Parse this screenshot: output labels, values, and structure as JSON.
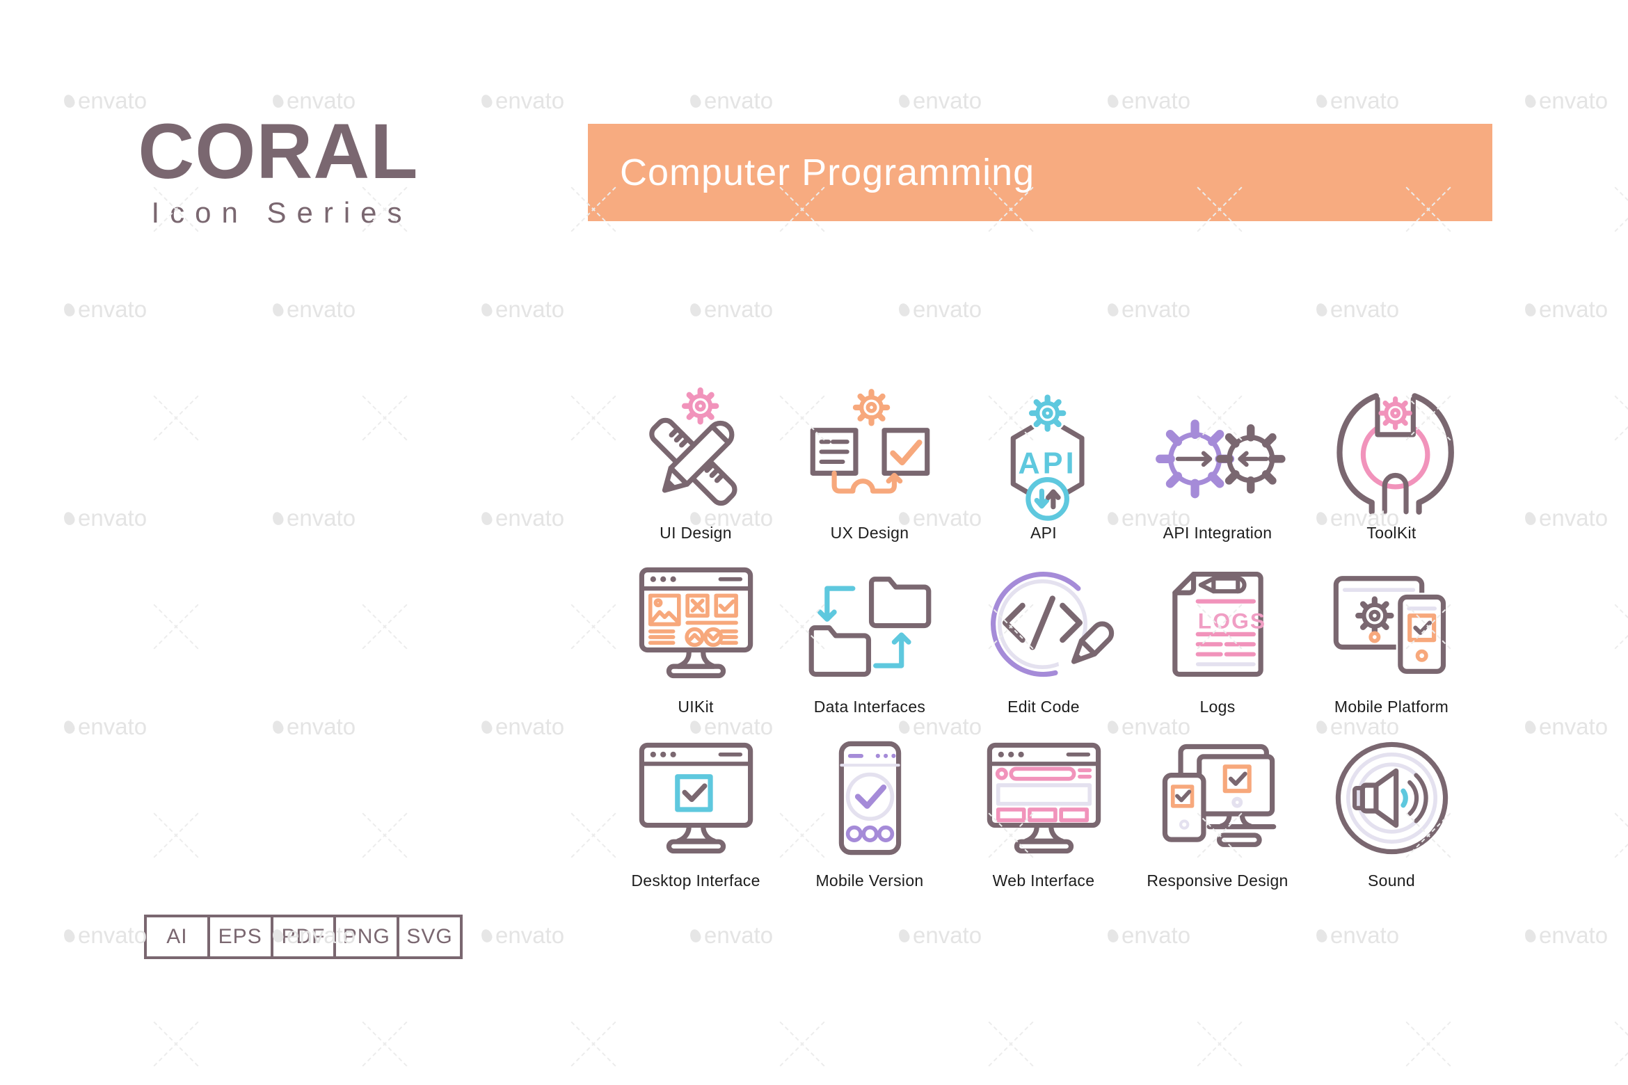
{
  "logo": {
    "title": "CORAL",
    "subtitle": "Icon Series"
  },
  "banner": {
    "title": "Computer Programming"
  },
  "icon_texts": {
    "api": "API",
    "logs": "LOGS"
  },
  "grid": {
    "items": [
      {
        "name": "ui-design",
        "label": "UI Design"
      },
      {
        "name": "ux-design",
        "label": "UX Design"
      },
      {
        "name": "api",
        "label": "API"
      },
      {
        "name": "api-integration",
        "label": "API Integration"
      },
      {
        "name": "toolkit",
        "label": "ToolKit"
      },
      {
        "name": "uikit",
        "label": "UIKit"
      },
      {
        "name": "data-interfaces",
        "label": "Data Interfaces"
      },
      {
        "name": "edit-code",
        "label": "Edit Code"
      },
      {
        "name": "logs",
        "label": "Logs"
      },
      {
        "name": "mobile-platform",
        "label": "Mobile Platform"
      },
      {
        "name": "desktop-interface",
        "label": "Desktop Interface"
      },
      {
        "name": "mobile-version",
        "label": "Mobile Version"
      },
      {
        "name": "web-interface",
        "label": "Web Interface"
      },
      {
        "name": "responsive-design",
        "label": "Responsive Design"
      },
      {
        "name": "sound",
        "label": "Sound"
      }
    ]
  },
  "formats": {
    "items": [
      "AI",
      "EPS",
      "PDF",
      "PNG",
      "SVG"
    ]
  },
  "watermark": {
    "text": "envato"
  },
  "colors": {
    "banner_bg": "#f7ab80",
    "brand": "#7a6770",
    "outline_mauve": "#7a6770",
    "pink": "#f193bb",
    "orange": "#f7a87c",
    "blue": "#5ec8de",
    "purple": "#a58bd8",
    "lavender": "#e4e1ef",
    "label_text": "#1d1d1d",
    "watermark_gray": "#e4e4e4"
  }
}
